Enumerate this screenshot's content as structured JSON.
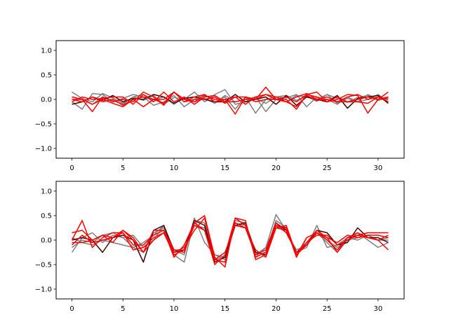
{
  "chart_data": [
    {
      "type": "line",
      "xlim": [
        -1.55,
        32.55
      ],
      "ylim": [
        -1.2,
        1.2
      ],
      "xticks": [
        0,
        5,
        10,
        15,
        20,
        25,
        30
      ],
      "xtick_labels": [
        "0",
        "5",
        "10",
        "15",
        "20",
        "25",
        "30"
      ],
      "yticks": [
        1.0,
        0.5,
        0.0,
        -0.5,
        -1.0
      ],
      "ytick_labels": [
        "1.0",
        "0.5",
        "0.0",
        "−0.5",
        "−1.0"
      ],
      "grid": false,
      "x": [
        0,
        1,
        2,
        3,
        4,
        5,
        6,
        7,
        8,
        9,
        10,
        11,
        12,
        13,
        14,
        15,
        16,
        17,
        18,
        19,
        20,
        21,
        22,
        23,
        24,
        25,
        26,
        27,
        28,
        29,
        30,
        31
      ],
      "series": [
        {
          "color": "#7f7f7f",
          "values": [
            0.15,
            0.02,
            -0.05,
            0.12,
            0.03,
            -0.08,
            0.05,
            -0.02,
            0.08,
            -0.1,
            0.04,
            0.0,
            0.15,
            -0.05,
            0.1,
            0.2,
            -0.1,
            -0.05,
            0.02,
            -0.08,
            0.05,
            0.08,
            -0.02,
            0.06,
            -0.04,
            0.1,
            0.02,
            -0.06,
            0.04,
            0.08,
            -0.02,
            0.03
          ]
        },
        {
          "color": "#7f7f7f",
          "values": [
            -0.05,
            -0.2,
            0.12,
            0.1,
            -0.05,
            0.02,
            0.1,
            0.05,
            -0.12,
            -0.05,
            0.08,
            -0.15,
            0.0,
            0.1,
            -0.05,
            0.05,
            -0.2,
            0.05,
            -0.28,
            0.0,
            0.05,
            0.03,
            0.1,
            -0.15,
            0.05,
            0.0,
            -0.1,
            0.05,
            -0.05,
            0.0,
            0.1,
            -0.05
          ]
        },
        {
          "color": "#7f7f7f",
          "values": [
            0.05,
            0.0,
            -0.1,
            0.05,
            -0.02,
            -0.1,
            0.05,
            0.1,
            0.0,
            0.05,
            -0.1,
            0.05,
            -0.05,
            0.02,
            -0.08,
            0.08,
            -0.05,
            0.0,
            0.05,
            -0.25,
            0.0,
            -0.05,
            0.08,
            0.05,
            0.0,
            0.1,
            -0.08,
            0.02,
            -0.05,
            0.1,
            0.0,
            0.05
          ]
        },
        {
          "color": "#3f0000",
          "values": [
            -0.1,
            -0.05,
            0.05,
            -0.02,
            0.08,
            -0.05,
            0.02,
            0.0,
            0.1,
            0.05,
            -0.08,
            0.02,
            0.05,
            0.0,
            -0.05,
            -0.05,
            0.1,
            -0.05,
            0.0,
            0.05,
            -0.1,
            0.08,
            -0.12,
            0.05,
            0.0,
            -0.05,
            0.08,
            -0.18,
            0.02,
            0.05,
            0.08,
            -0.08
          ]
        },
        {
          "color": "#ff0000",
          "values": [
            0.05,
            0.0,
            -0.25,
            0.05,
            -0.05,
            0.0,
            -0.05,
            0.15,
            0.05,
            -0.12,
            0.15,
            -0.05,
            0.05,
            0.1,
            -0.05,
            0.0,
            -0.3,
            0.05,
            0.0,
            0.25,
            0.0,
            0.0,
            -0.2,
            0.1,
            0.15,
            -0.05,
            0.0,
            0.1,
            0.08,
            -0.28,
            0.0,
            0.15
          ]
        },
        {
          "color": "#ff0000",
          "values": [
            -0.05,
            0.05,
            0.0,
            0.02,
            0.05,
            0.05,
            -0.1,
            0.1,
            -0.05,
            0.15,
            -0.05,
            0.05,
            -0.1,
            0.05,
            0.08,
            -0.05,
            -0.05,
            0.0,
            0.0,
            0.1,
            0.0,
            -0.05,
            0.05,
            0.12,
            0.0,
            0.05,
            -0.05,
            0.05,
            0.1,
            0.0,
            0.05,
            -0.05
          ]
        },
        {
          "color": "#ff0000",
          "values": [
            0.0,
            -0.05,
            0.05,
            -0.05,
            0.0,
            -0.12,
            0.0,
            -0.15,
            0.0,
            0.0,
            0.15,
            0.0,
            -0.05,
            0.08,
            0.0,
            0.0,
            0.05,
            -0.1,
            0.05,
            0.1,
            0.05,
            -0.05,
            -0.15,
            0.08,
            -0.02,
            0.0,
            -0.05,
            -0.05,
            0.0,
            0.05,
            0.0,
            0.05
          ]
        },
        {
          "color": "#ff0000",
          "values": [
            0.0,
            0.0,
            -0.1,
            0.0,
            -0.08,
            -0.15,
            0.0,
            0.05,
            0.0,
            -0.08,
            0.15,
            -0.05,
            0.0,
            0.0,
            0.05,
            -0.08,
            0.05,
            0.05,
            -0.05,
            0.0,
            0.0,
            0.05,
            -0.05,
            0.1,
            0.05,
            -0.05,
            0.05,
            -0.05,
            -0.05,
            -0.08,
            0.05,
            0.0
          ]
        }
      ]
    },
    {
      "type": "line",
      "xlim": [
        -1.55,
        32.55
      ],
      "ylim": [
        -1.2,
        1.2
      ],
      "xticks": [
        0,
        5,
        10,
        15,
        20,
        25,
        30
      ],
      "xtick_labels": [
        "0",
        "5",
        "10",
        "15",
        "20",
        "25",
        "30"
      ],
      "yticks": [
        1.0,
        0.5,
        0.0,
        -0.5,
        -1.0
      ],
      "ytick_labels": [
        "1.0",
        "0.5",
        "0.0",
        "−0.5",
        "−1.0"
      ],
      "grid": false,
      "x": [
        0,
        1,
        2,
        3,
        4,
        5,
        6,
        7,
        8,
        9,
        10,
        11,
        12,
        13,
        14,
        15,
        16,
        17,
        18,
        19,
        20,
        21,
        22,
        23,
        24,
        25,
        26,
        27,
        28,
        29,
        30,
        31
      ],
      "series": [
        {
          "color": "#7f7f7f",
          "values": [
            -0.25,
            0.05,
            0.15,
            -0.05,
            0.1,
            0.05,
            0.1,
            -0.15,
            0.0,
            0.3,
            -0.2,
            -0.3,
            0.45,
            -0.05,
            -0.3,
            -0.35,
            0.3,
            0.25,
            -0.3,
            -0.15,
            0.52,
            0.2,
            -0.25,
            -0.15,
            0.3,
            -0.15,
            -0.1,
            0.05,
            0.0,
            0.1,
            0.0,
            0.05
          ]
        },
        {
          "color": "#7f7f7f",
          "values": [
            -0.15,
            0.0,
            -0.05,
            0.1,
            0.15,
            0.05,
            -0.15,
            -0.25,
            0.15,
            0.25,
            -0.3,
            -0.45,
            0.4,
            0.35,
            -0.4,
            -0.35,
            0.35,
            0.3,
            -0.3,
            -0.25,
            0.4,
            0.25,
            -0.3,
            0.05,
            0.15,
            -0.05,
            -0.25,
            0.0,
            0.05,
            0.1,
            0.0,
            0.0
          ]
        },
        {
          "color": "#7f7f7f",
          "values": [
            0.05,
            -0.05,
            -0.1,
            0.0,
            -0.05,
            -0.1,
            -0.15,
            -0.05,
            0.1,
            0.3,
            -0.2,
            -0.2,
            0.3,
            0.25,
            -0.3,
            -0.4,
            0.4,
            0.35,
            -0.35,
            -0.15,
            0.3,
            0.15,
            -0.2,
            -0.1,
            0.2,
            0.0,
            -0.15,
            0.0,
            0.15,
            0.0,
            -0.15,
            -0.05
          ]
        },
        {
          "color": "#3f0000",
          "values": [
            0.0,
            0.05,
            0.0,
            -0.25,
            0.05,
            0.1,
            0.0,
            -0.45,
            0.2,
            0.3,
            -0.25,
            -0.2,
            0.4,
            0.3,
            -0.45,
            -0.35,
            0.3,
            0.35,
            -0.25,
            -0.3,
            0.35,
            0.2,
            -0.25,
            -0.1,
            0.2,
            0.15,
            -0.1,
            -0.05,
            0.25,
            0.05,
            0.05,
            -0.05
          ]
        },
        {
          "color": "#ff0000",
          "values": [
            0.15,
            0.2,
            0.0,
            0.1,
            -0.05,
            0.2,
            0.0,
            -0.25,
            0.2,
            0.2,
            -0.35,
            -0.1,
            0.35,
            0.2,
            -0.5,
            -0.3,
            0.45,
            0.4,
            -0.4,
            -0.3,
            0.3,
            0.25,
            -0.35,
            0.05,
            0.15,
            0.05,
            -0.25,
            0.05,
            0.1,
            0.15,
            0.15,
            0.15
          ]
        },
        {
          "color": "#ff0000",
          "values": [
            -0.1,
            0.1,
            -0.05,
            0.0,
            0.05,
            0.15,
            -0.1,
            -0.1,
            0.1,
            0.2,
            -0.2,
            -0.25,
            0.35,
            0.5,
            -0.35,
            -0.55,
            0.45,
            0.3,
            -0.35,
            -0.25,
            0.25,
            0.2,
            -0.3,
            -0.05,
            0.2,
            0.05,
            -0.05,
            0.1,
            0.05,
            0.1,
            0.1,
            0.05
          ]
        },
        {
          "color": "#ff0000",
          "values": [
            0.0,
            0.4,
            -0.15,
            0.05,
            0.15,
            0.15,
            -0.2,
            -0.15,
            0.05,
            0.15,
            -0.25,
            -0.15,
            0.2,
            0.45,
            -0.4,
            -0.25,
            0.3,
            0.25,
            -0.2,
            -0.35,
            0.25,
            0.3,
            -0.3,
            -0.1,
            0.15,
            0.0,
            -0.2,
            0.05,
            0.15,
            0.05,
            0.0,
            -0.2
          ]
        },
        {
          "color": "#ff0000",
          "values": [
            -0.05,
            -0.05,
            0.0,
            0.1,
            0.05,
            0.2,
            0.05,
            -0.25,
            0.0,
            0.15,
            -0.3,
            -0.2,
            0.3,
            0.2,
            -0.4,
            -0.45,
            0.35,
            0.25,
            -0.3,
            -0.2,
            0.35,
            0.15,
            -0.25,
            -0.05,
            0.1,
            0.1,
            -0.1,
            0.0,
            0.1,
            0.05,
            0.0,
            0.1
          ]
        }
      ]
    }
  ]
}
